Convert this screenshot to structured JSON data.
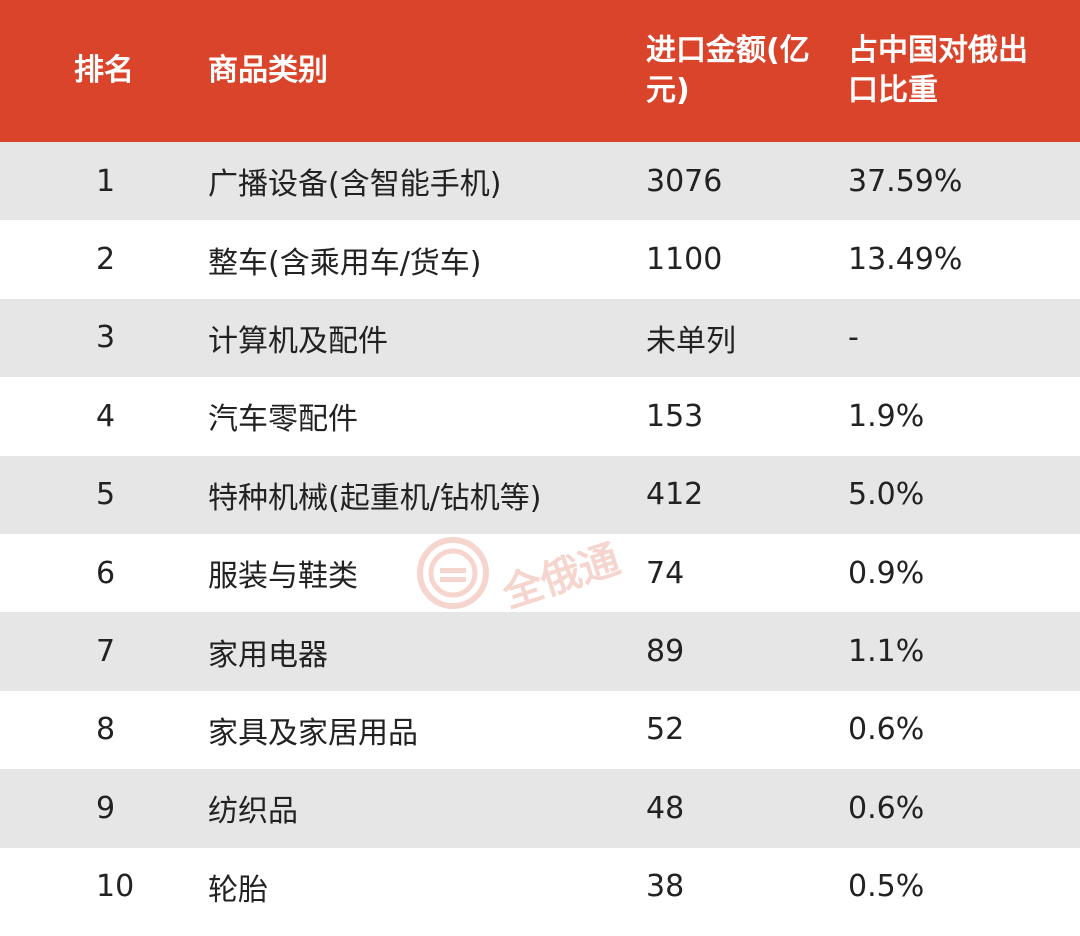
{
  "header": {
    "rank": "排名",
    "category": "商品类别",
    "amount": "进口金额(亿元)",
    "share": "占中国对俄出口比重"
  },
  "rows": [
    {
      "rank": "1",
      "category": "广播设备(含智能手机)",
      "amount": "3076",
      "share": "37.59%"
    },
    {
      "rank": "2",
      "category": "整车(含乘用车/货车)",
      "amount": "1100",
      "share": "13.49%"
    },
    {
      "rank": "3",
      "category": "计算机及配件",
      "amount": "未单列",
      "share": "-"
    },
    {
      "rank": "4",
      "category": "汽车零配件",
      "amount": "153",
      "share": "1.9%"
    },
    {
      "rank": "5",
      "category": "特种机械(起重机/钻机等)",
      "amount": "412",
      "share": "5.0%"
    },
    {
      "rank": "6",
      "category": "服装与鞋类",
      "amount": "74",
      "share": "0.9%"
    },
    {
      "rank": "7",
      "category": "家用电器",
      "amount": "89",
      "share": "1.1%"
    },
    {
      "rank": "8",
      "category": "家具及家居用品",
      "amount": "52",
      "share": "0.6%"
    },
    {
      "rank": "9",
      "category": "纺织品",
      "amount": "48",
      "share": "0.6%"
    },
    {
      "rank": "10",
      "category": "轮胎",
      "amount": "38",
      "share": "0.5%"
    }
  ],
  "watermark": {
    "text": "全俄通",
    "icon": "ruble-coin-icon"
  },
  "colors": {
    "header_bg": "#d9442b",
    "header_text": "#ffffff",
    "row_shaded": "#e6e6e6",
    "row_plain": "#ffffff",
    "text": "#222222"
  }
}
